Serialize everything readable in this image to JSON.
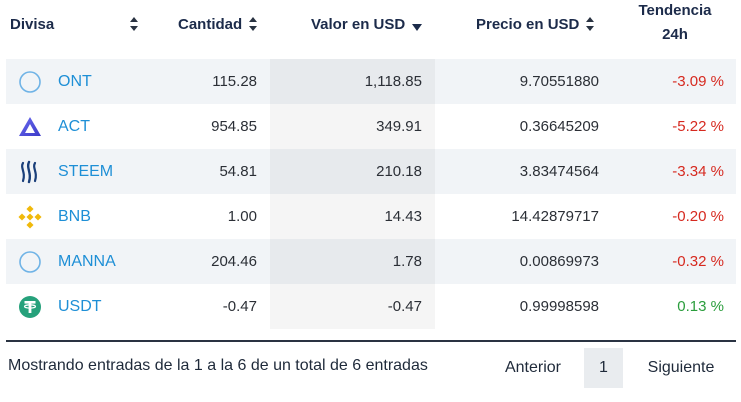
{
  "headers": {
    "currency": "Divisa",
    "quantity": "Cantidad",
    "value_usd": "Valor en USD",
    "price_usd": "Precio en USD",
    "trend_line1": "Tendencia",
    "trend_line2": "24h"
  },
  "rows": [
    {
      "icon": "ont-circle-icon",
      "name": "ONT",
      "quantity": "115.28",
      "value": "1,118.85",
      "price": "9.70551880",
      "trend": "-3.09 %",
      "trend_dir": "neg"
    },
    {
      "icon": "act-triangle-icon",
      "name": "ACT",
      "quantity": "954.85",
      "value": "349.91",
      "price": "0.36645209",
      "trend": "-5.22 %",
      "trend_dir": "neg"
    },
    {
      "icon": "steem-icon",
      "name": "STEEM",
      "quantity": "54.81",
      "value": "210.18",
      "price": "3.83474564",
      "trend": "-3.34 %",
      "trend_dir": "neg"
    },
    {
      "icon": "bnb-icon",
      "name": "BNB",
      "quantity": "1.00",
      "value": "14.43",
      "price": "14.42879717",
      "trend": "-0.20 %",
      "trend_dir": "neg"
    },
    {
      "icon": "manna-circle-icon",
      "name": "MANNA",
      "quantity": "204.46",
      "value": "1.78",
      "price": "0.00869973",
      "trend": "-0.32 %",
      "trend_dir": "neg"
    },
    {
      "icon": "usdt-tether-icon",
      "name": "USDT",
      "quantity": "-0.47",
      "value": "-0.47",
      "price": "0.99998598",
      "trend": "0.13 %",
      "trend_dir": "pos"
    }
  ],
  "footer": {
    "info": "Mostrando entradas de la 1 a la 6 de un total de 6 entradas",
    "prev": "Anterior",
    "page": "1",
    "next": "Siguiente"
  },
  "colors": {
    "coin_link": "#1e8fd6",
    "negative": "#d6291f",
    "positive": "#2a9d3c",
    "stripe": "#f1f4f7"
  }
}
